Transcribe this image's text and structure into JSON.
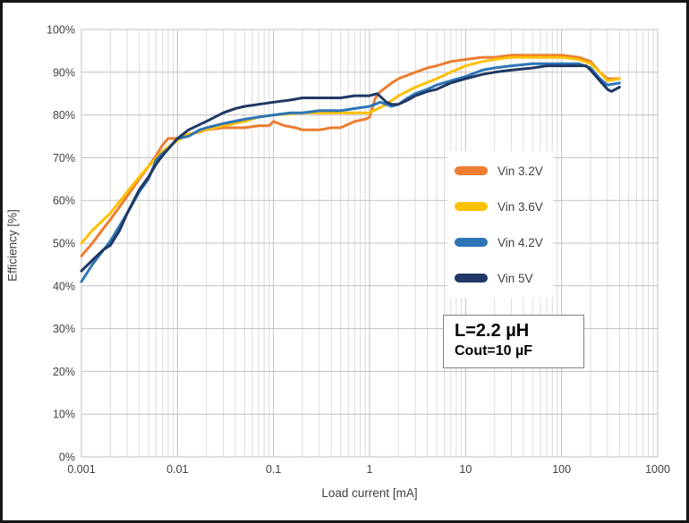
{
  "chart_data": {
    "type": "line",
    "title": "",
    "xlabel": "Load current [mA]",
    "ylabel": "Efficiency [%]",
    "x_scale": "log",
    "xlim": [
      0.001,
      1000
    ],
    "ylim": [
      0,
      100
    ],
    "grid": "major-and-minor",
    "legend_position": "middle-right",
    "x_ticks": [
      0.001,
      0.01,
      0.1,
      1,
      10,
      100,
      1000
    ],
    "x_tick_labels": [
      "0.001",
      "0.01",
      "0.1",
      "1",
      "10",
      "100",
      "1000"
    ],
    "y_tick_values": [
      0,
      10,
      20,
      30,
      40,
      50,
      60,
      70,
      80,
      90,
      100
    ],
    "y_tick_labels": [
      "0%",
      "10%",
      "20%",
      "30%",
      "40%",
      "50%",
      "60%",
      "70%",
      "80%",
      "90%",
      "100%"
    ],
    "annotation": {
      "line1": "L=2.2 µH",
      "line2": "Cout=10 µF"
    },
    "colors": {
      "grid_minor": "#DCDCDC",
      "grid_major": "#BFBFBF",
      "axis_text": "#404040"
    },
    "series": [
      {
        "name": "Vin 3.2V",
        "color": "#ED7D31",
        "points": [
          [
            0.001,
            47
          ],
          [
            0.0013,
            50
          ],
          [
            0.0017,
            53.5
          ],
          [
            0.002,
            55.5
          ],
          [
            0.003,
            61
          ],
          [
            0.004,
            65
          ],
          [
            0.005,
            68
          ],
          [
            0.006,
            70.5
          ],
          [
            0.007,
            73
          ],
          [
            0.008,
            74.5
          ],
          [
            0.01,
            74.5
          ],
          [
            0.013,
            75.5
          ],
          [
            0.017,
            76
          ],
          [
            0.02,
            76.5
          ],
          [
            0.03,
            77
          ],
          [
            0.05,
            77
          ],
          [
            0.07,
            77.5
          ],
          [
            0.09,
            77.5
          ],
          [
            0.1,
            78.5
          ],
          [
            0.13,
            77.5
          ],
          [
            0.17,
            77
          ],
          [
            0.2,
            76.5
          ],
          [
            0.3,
            76.5
          ],
          [
            0.4,
            77
          ],
          [
            0.5,
            77
          ],
          [
            0.7,
            78.5
          ],
          [
            0.9,
            79
          ],
          [
            1.0,
            79.5
          ],
          [
            1.15,
            84
          ],
          [
            1.3,
            85.5
          ],
          [
            1.7,
            87.5
          ],
          [
            2,
            88.5
          ],
          [
            3,
            90
          ],
          [
            4,
            91
          ],
          [
            5,
            91.5
          ],
          [
            7,
            92.5
          ],
          [
            10,
            93
          ],
          [
            15,
            93.5
          ],
          [
            20,
            93.5
          ],
          [
            30,
            94
          ],
          [
            50,
            94
          ],
          [
            70,
            94
          ],
          [
            100,
            94
          ],
          [
            150,
            93.5
          ],
          [
            200,
            92.5
          ],
          [
            250,
            90
          ],
          [
            300,
            88.5
          ],
          [
            400,
            88.5
          ]
        ]
      },
      {
        "name": "Vin 3.6V",
        "color": "#FFC000",
        "points": [
          [
            0.001,
            50
          ],
          [
            0.0013,
            53
          ],
          [
            0.002,
            57
          ],
          [
            0.003,
            62
          ],
          [
            0.004,
            65.5
          ],
          [
            0.005,
            68
          ],
          [
            0.007,
            71.5
          ],
          [
            0.01,
            74
          ],
          [
            0.013,
            75.5
          ],
          [
            0.02,
            76.5
          ],
          [
            0.03,
            77.5
          ],
          [
            0.05,
            78.5
          ],
          [
            0.07,
            79.5
          ],
          [
            0.1,
            80
          ],
          [
            0.2,
            80.5
          ],
          [
            0.3,
            80.5
          ],
          [
            0.5,
            80.5
          ],
          [
            0.7,
            80.5
          ],
          [
            1,
            80.5
          ],
          [
            1.5,
            82.5
          ],
          [
            2,
            84.5
          ],
          [
            3,
            86.5
          ],
          [
            5,
            88.5
          ],
          [
            7,
            90
          ],
          [
            10,
            91.5
          ],
          [
            15,
            92.5
          ],
          [
            20,
            93
          ],
          [
            30,
            93.5
          ],
          [
            50,
            93.5
          ],
          [
            100,
            93.5
          ],
          [
            150,
            93
          ],
          [
            200,
            92
          ],
          [
            250,
            90
          ],
          [
            300,
            88
          ],
          [
            400,
            88.5
          ]
        ]
      },
      {
        "name": "Vin 4.2V",
        "color": "#2E75B6",
        "points": [
          [
            0.001,
            41
          ],
          [
            0.0013,
            45
          ],
          [
            0.002,
            50.5
          ],
          [
            0.003,
            57
          ],
          [
            0.004,
            62
          ],
          [
            0.005,
            65
          ],
          [
            0.006,
            69.5
          ],
          [
            0.007,
            71
          ],
          [
            0.008,
            72
          ],
          [
            0.01,
            74.5
          ],
          [
            0.013,
            75
          ],
          [
            0.017,
            76.5
          ],
          [
            0.02,
            77
          ],
          [
            0.03,
            78
          ],
          [
            0.05,
            79
          ],
          [
            0.07,
            79.5
          ],
          [
            0.1,
            80
          ],
          [
            0.15,
            80.5
          ],
          [
            0.2,
            80.5
          ],
          [
            0.3,
            81
          ],
          [
            0.5,
            81
          ],
          [
            0.7,
            81.5
          ],
          [
            1,
            82
          ],
          [
            1.3,
            83
          ],
          [
            1.5,
            82.5
          ],
          [
            1.7,
            82
          ],
          [
            2,
            82.5
          ],
          [
            2.5,
            84
          ],
          [
            3,
            85
          ],
          [
            4,
            86
          ],
          [
            5,
            87
          ],
          [
            7,
            88
          ],
          [
            10,
            89
          ],
          [
            15,
            90.5
          ],
          [
            20,
            91
          ],
          [
            30,
            91.5
          ],
          [
            50,
            92
          ],
          [
            70,
            92
          ],
          [
            100,
            92
          ],
          [
            150,
            92
          ],
          [
            200,
            91
          ],
          [
            250,
            88.5
          ],
          [
            300,
            87
          ],
          [
            400,
            87.5
          ]
        ]
      },
      {
        "name": "Vin 5V",
        "color": "#1F3864",
        "points": [
          [
            0.001,
            43.5
          ],
          [
            0.0013,
            46
          ],
          [
            0.0017,
            48.5
          ],
          [
            0.002,
            49.5
          ],
          [
            0.0025,
            53
          ],
          [
            0.003,
            57
          ],
          [
            0.004,
            62.5
          ],
          [
            0.005,
            65.5
          ],
          [
            0.006,
            68.5
          ],
          [
            0.007,
            70.5
          ],
          [
            0.008,
            72
          ],
          [
            0.01,
            74.5
          ],
          [
            0.013,
            76.5
          ],
          [
            0.02,
            78.5
          ],
          [
            0.03,
            80.5
          ],
          [
            0.04,
            81.5
          ],
          [
            0.05,
            82
          ],
          [
            0.07,
            82.5
          ],
          [
            0.1,
            83
          ],
          [
            0.15,
            83.5
          ],
          [
            0.2,
            84
          ],
          [
            0.3,
            84
          ],
          [
            0.5,
            84
          ],
          [
            0.7,
            84.5
          ],
          [
            1,
            84.5
          ],
          [
            1.2,
            85
          ],
          [
            1.5,
            83
          ],
          [
            1.7,
            82.5
          ],
          [
            2,
            82.5
          ],
          [
            2.5,
            83.5
          ],
          [
            3,
            84.5
          ],
          [
            4,
            85.5
          ],
          [
            5,
            86
          ],
          [
            7,
            87.5
          ],
          [
            10,
            88.5
          ],
          [
            15,
            89.5
          ],
          [
            20,
            90
          ],
          [
            30,
            90.5
          ],
          [
            50,
            91
          ],
          [
            70,
            91.5
          ],
          [
            100,
            91.5
          ],
          [
            150,
            91.5
          ],
          [
            180,
            91.5
          ],
          [
            200,
            90.5
          ],
          [
            250,
            88
          ],
          [
            300,
            86
          ],
          [
            330,
            85.5
          ],
          [
            400,
            86.5
          ]
        ]
      }
    ]
  }
}
